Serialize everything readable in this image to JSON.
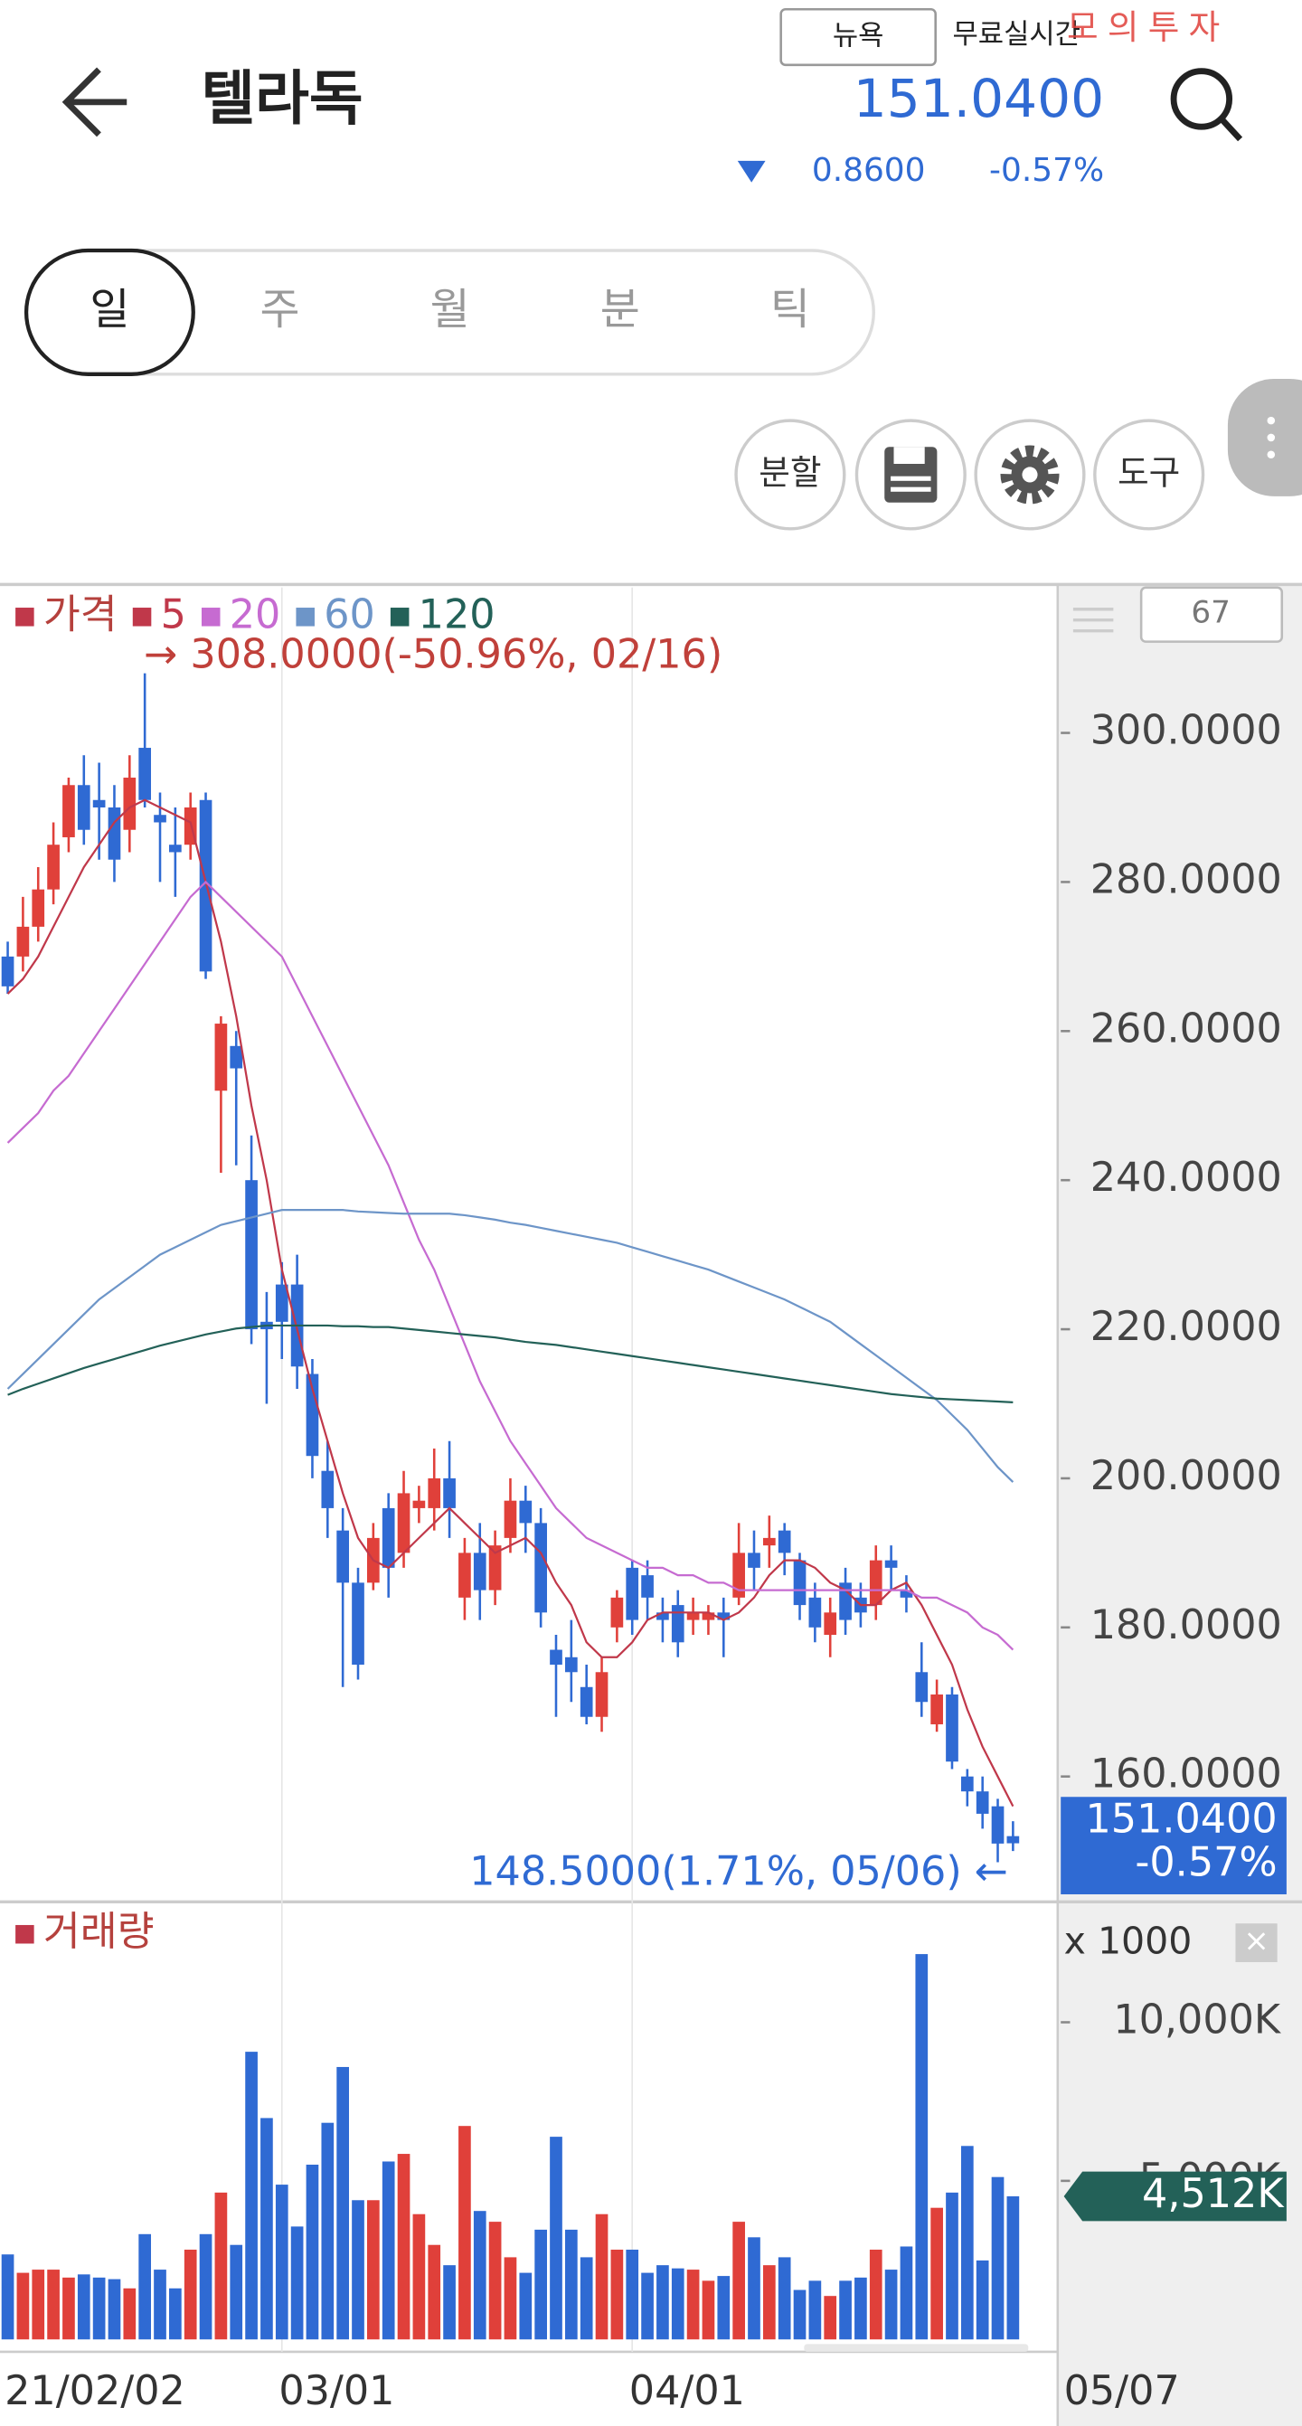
{
  "header": {
    "title": "텔라독",
    "exchange": "뉴욕",
    "realtime": "무료실시간",
    "mode": "모의투자",
    "price": "151.0400",
    "change": "0.8600",
    "change_pct": "-0.57%"
  },
  "period_tabs": [
    "일",
    "주",
    "월",
    "분",
    "틱"
  ],
  "tools": [
    "분할",
    "도구"
  ],
  "chart_data": [
    {
      "type": "candlestick",
      "legend_title": "가격",
      "period_count": "67",
      "categories": [
        "21/02/02",
        null,
        null,
        null,
        null,
        null,
        null,
        null,
        null,
        null,
        null,
        null,
        null,
        null,
        null,
        null,
        null,
        null,
        "03/01",
        null,
        null,
        null,
        null,
        null,
        null,
        null,
        null,
        null,
        null,
        null,
        null,
        null,
        null,
        null,
        null,
        null,
        null,
        null,
        null,
        null,
        null,
        "04/01",
        null,
        null,
        null,
        null,
        null,
        null,
        null,
        null,
        null,
        null,
        null,
        null,
        null,
        null,
        null,
        null,
        null,
        null,
        null,
        null,
        null,
        null,
        null,
        null,
        "05/07"
      ],
      "open": [
        270,
        270,
        274,
        279,
        286,
        293,
        291,
        290,
        287,
        298,
        289,
        285,
        285,
        291,
        252,
        258,
        240,
        221,
        226,
        226,
        214,
        201,
        193,
        186,
        186,
        196,
        190,
        196,
        196,
        200,
        184,
        190,
        185,
        192,
        197,
        194,
        177,
        176,
        172,
        168,
        180,
        188,
        187,
        182,
        183,
        181,
        181,
        182,
        184,
        190,
        191,
        193,
        189,
        184,
        179,
        186,
        184,
        183,
        189,
        185,
        174,
        167,
        171,
        160,
        158,
        156,
        152
      ],
      "high": [
        272,
        278,
        282,
        288,
        294,
        297,
        296,
        293,
        297,
        308,
        292,
        290,
        292,
        292,
        262,
        260,
        246,
        225,
        229,
        230,
        216,
        205,
        196,
        188,
        194,
        198,
        201,
        199,
        204,
        205,
        192,
        194,
        193,
        200,
        199,
        196,
        179,
        181,
        175,
        176,
        185,
        189,
        189,
        184,
        185,
        184,
        183,
        184,
        194,
        193,
        195,
        194,
        190,
        186,
        184,
        188,
        186,
        191,
        191,
        187,
        178,
        173,
        172,
        161,
        160,
        157,
        154
      ],
      "low": [
        265,
        268,
        272,
        277,
        284,
        285,
        283,
        280,
        284,
        290,
        280,
        278,
        283,
        267,
        241,
        242,
        218,
        210,
        216,
        212,
        200,
        192,
        172,
        173,
        185,
        184,
        188,
        194,
        193,
        192,
        181,
        181,
        183,
        190,
        190,
        180,
        168,
        170,
        167,
        166,
        178,
        179,
        181,
        178,
        176,
        179,
        179,
        176,
        183,
        185,
        188,
        187,
        181,
        178,
        176,
        179,
        180,
        181,
        185,
        182,
        168,
        166,
        161,
        156,
        153,
        148.5,
        150
      ],
      "close": [
        266,
        274,
        279,
        285,
        293,
        287,
        290,
        283,
        294,
        291,
        288,
        284,
        290,
        268,
        261,
        255,
        220,
        220,
        221,
        215,
        203,
        196,
        186,
        175,
        192,
        188,
        198,
        197,
        200,
        196,
        190,
        185,
        191,
        197,
        194,
        182,
        175,
        174,
        168,
        174,
        184,
        181,
        184,
        181,
        178,
        182,
        182,
        181,
        190,
        188,
        192,
        190,
        183,
        180,
        182,
        181,
        182,
        189,
        188,
        184,
        170,
        171,
        162,
        158,
        155,
        151,
        151.04
      ],
      "up_color": "#e0403a",
      "down_color": "#2f6ad3",
      "series": [
        {
          "name": "5",
          "color": "#c0384a",
          "values": [
            265,
            267,
            270,
            274,
            278,
            282,
            285,
            288,
            290,
            291,
            290,
            289,
            288,
            280,
            272,
            262,
            250,
            240,
            228,
            220,
            212,
            205,
            198,
            192,
            189,
            188,
            190,
            192,
            194,
            196,
            194,
            192,
            190,
            191,
            192,
            190,
            186,
            183,
            178,
            176,
            176,
            178,
            181,
            182,
            182,
            182,
            182,
            181,
            182,
            184,
            187,
            189,
            189,
            188,
            186,
            185,
            183,
            183,
            185,
            186,
            183,
            179,
            175,
            169,
            164,
            160,
            156
          ]
        },
        {
          "name": "20",
          "color": "#c66bd1",
          "values": [
            245,
            247,
            249,
            252,
            254,
            257,
            260,
            263,
            266,
            269,
            272,
            275,
            278,
            280,
            278,
            276,
            274,
            272,
            270,
            266,
            262,
            258,
            254,
            250,
            246,
            242,
            237,
            232,
            228,
            223,
            218,
            213,
            209,
            205,
            202,
            199,
            196,
            194,
            192,
            191,
            190,
            189,
            188,
            188,
            187,
            187,
            186,
            186,
            185,
            185,
            185,
            185,
            185,
            185,
            185,
            185,
            185,
            185,
            185,
            185,
            184,
            184,
            183,
            182,
            180,
            179,
            177
          ]
        },
        {
          "name": "60",
          "color": "#6d95c8",
          "values": [
            212,
            214,
            216,
            218,
            220,
            222,
            224,
            225.5,
            227,
            228.5,
            230,
            231,
            232,
            233,
            234,
            234.5,
            235,
            235.5,
            236,
            236,
            236,
            236,
            236,
            235.8,
            235.7,
            235.6,
            235.5,
            235.5,
            235.5,
            235.5,
            235.3,
            235,
            234.7,
            234.3,
            234,
            233.6,
            233.2,
            232.8,
            232.4,
            232,
            231.6,
            231,
            230.4,
            229.8,
            229.2,
            228.6,
            228,
            227.2,
            226.4,
            225.6,
            224.8,
            224,
            223,
            222,
            221,
            219.5,
            218,
            216.5,
            215,
            213.5,
            212,
            210.5,
            208.5,
            206.5,
            204,
            201.5,
            199.5
          ]
        },
        {
          "name": "120",
          "color": "#236158",
          "values": [
            211.2,
            212,
            212.7,
            213.4,
            214.1,
            214.8,
            215.4,
            216,
            216.6,
            217.2,
            217.8,
            218.3,
            218.8,
            219.3,
            219.7,
            220.1,
            220.3,
            220.5,
            220.5,
            220.5,
            220.5,
            220.5,
            220.4,
            220.4,
            220.3,
            220.3,
            220.1,
            219.9,
            219.7,
            219.5,
            219.3,
            219.1,
            218.9,
            218.6,
            218.3,
            218.1,
            217.9,
            217.6,
            217.3,
            217,
            216.7,
            216.4,
            216.1,
            215.8,
            215.5,
            215.2,
            214.9,
            214.6,
            214.3,
            214,
            213.7,
            213.4,
            213.1,
            212.8,
            212.5,
            212.2,
            211.9,
            211.6,
            211.3,
            211.1,
            210.9,
            210.7,
            210.6,
            210.5,
            210.4,
            210.3,
            210.2
          ]
        }
      ],
      "ylim": [
        143.6,
        319.5
      ],
      "yticks": [
        {
          "value": 160,
          "label": "160.0000"
        },
        {
          "value": 180,
          "label": "180.0000"
        },
        {
          "value": 200,
          "label": "200.0000"
        },
        {
          "value": 220,
          "label": "220.0000"
        },
        {
          "value": 240,
          "label": "240.0000"
        },
        {
          "value": 260,
          "label": "260.0000"
        },
        {
          "value": 280,
          "label": "280.0000"
        },
        {
          "value": 300,
          "label": "300.0000"
        }
      ],
      "annotations": [
        "→ 308.0000(-50.96%, 02/16)",
        "148.5000(1.71%, 05/06) ←"
      ]
    },
    {
      "type": "bar",
      "title": "거래량",
      "unit_label": "x 1000",
      "values": [
        2680,
        2100,
        2200,
        2200,
        1950,
        2050,
        1950,
        1900,
        1610,
        3320,
        2200,
        1610,
        2830,
        3320,
        4630,
        2980,
        9070,
        6980,
        4880,
        3560,
        5510,
        6830,
        8590,
        4390,
        4390,
        5610,
        5850,
        3950,
        2980,
        2340,
        6730,
        4050,
        3710,
        2590,
        2100,
        3460,
        6390,
        3460,
        2590,
        3950,
        2830,
        2830,
        2100,
        2340,
        2240,
        2200,
        1850,
        2000,
        3710,
        3220,
        2340,
        2590,
        1560,
        1850,
        1370,
        1850,
        1950,
        2830,
        2200,
        2930,
        12150,
        4150,
        4630,
        6100,
        2490,
        5120,
        4512
      ],
      "value_tag": "4,512K",
      "ylim": [
        0,
        13700
      ],
      "yticks": [
        {
          "value": 5000,
          "label": "5,000K"
        },
        {
          "value": 10000,
          "label": "10,000K"
        }
      ]
    }
  ]
}
